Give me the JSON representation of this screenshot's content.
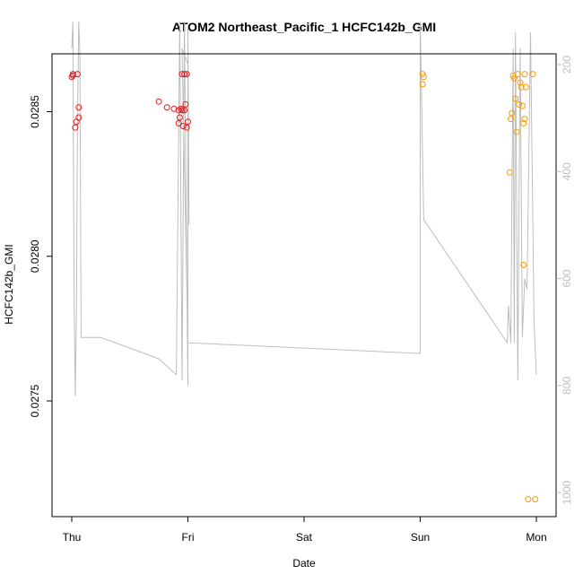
{
  "chart_data": {
    "type": "scatter",
    "title": "ATOM2 Northeast_Pacific_1 HCFC142b_GMI",
    "xlabel": "Date",
    "ylabel": "HCFC142b_GMI",
    "x_ticks": [
      {
        "label": "Thu",
        "value": 0
      },
      {
        "label": "Fri",
        "value": 1
      },
      {
        "label": "Sat",
        "value": 2
      },
      {
        "label": "Sun",
        "value": 3
      },
      {
        "label": "Mon",
        "value": 4
      }
    ],
    "xlim": [
      -0.17,
      4.17
    ],
    "ylim": [
      0.0271,
      0.0287
    ],
    "y_ticks": [
      0.0275,
      0.028,
      0.0285
    ],
    "y_tick_labels": [
      "0.0275",
      "0.0280",
      "0.0285"
    ],
    "y2_lim": [
      1045,
      180
    ],
    "y2_ticks": [
      200,
      400,
      600,
      800,
      1000
    ],
    "y2_tick_labels": [
      "200",
      "400",
      "600",
      "800",
      "1000"
    ],
    "colors": {
      "series_red": "#e41a1c",
      "series_orange": "#ff9900",
      "altitude_line": "#bdbdbd",
      "axis": "#000000"
    },
    "series": [
      {
        "color": "#e41a1c",
        "x": [
          0.0,
          0.01,
          0.01,
          0.05,
          0.03,
          0.04,
          0.06,
          0.06,
          0.75,
          0.82,
          0.88,
          0.92,
          0.95,
          0.93,
          0.92,
          0.96,
          0.94,
          0.97,
          0.98,
          0.97,
          0.99,
          1.0,
          0.99,
          0.95
        ],
        "y": [
          0.02862,
          0.028625,
          0.02863,
          0.02863,
          0.028445,
          0.028465,
          0.02848,
          0.028515,
          0.028535,
          0.028515,
          0.02851,
          0.028505,
          0.028505,
          0.02848,
          0.02846,
          0.02845,
          0.02851,
          0.028505,
          0.028525,
          0.02863,
          0.02863,
          0.028465,
          0.028445,
          0.02863
        ]
      },
      {
        "color": "#ff9900",
        "x": [
          3.02,
          3.03,
          3.02,
          3.77,
          3.78,
          3.79,
          3.81,
          3.8,
          3.82,
          3.83,
          3.85,
          3.84,
          3.86,
          3.87,
          3.88,
          3.89,
          3.89,
          3.9,
          3.91,
          3.9,
          3.93,
          3.97,
          3.99
        ],
        "y": [
          0.028595,
          0.02862,
          0.02863,
          0.02829,
          0.028475,
          0.028495,
          0.028615,
          0.028625,
          0.028545,
          0.02843,
          0.028525,
          0.02863,
          0.0286,
          0.028585,
          0.02852,
          0.02797,
          0.02846,
          0.028475,
          0.028585,
          0.02863,
          0.02716,
          0.02863,
          0.02716
        ]
      }
    ],
    "altitude_line": {
      "x": [
        0.0,
        0.01,
        0.02,
        0.03,
        0.04,
        0.05,
        0.06,
        0.07,
        0.08,
        0.25,
        0.75,
        0.8,
        0.9,
        0.93,
        0.95,
        0.97,
        1.0,
        1.0,
        1.01,
        1.0,
        0.95,
        1.0,
        3.0,
        3.0,
        3.03,
        3.75,
        3.76,
        3.78,
        3.8,
        3.81,
        3.82,
        3.84,
        3.86,
        3.88,
        3.9,
        3.92,
        3.95,
        3.98,
        4.0
      ],
      "y": [
        170,
        120,
        650,
        820,
        650,
        300,
        120,
        180,
        710,
        710,
        750,
        760,
        780,
        120,
        790,
        120,
        800,
        130,
        500,
        200,
        170,
        720,
        740,
        120,
        490,
        720,
        650,
        720,
        170,
        720,
        140,
        790,
        170,
        710,
        600,
        620,
        140,
        680,
        780
      ]
    }
  }
}
